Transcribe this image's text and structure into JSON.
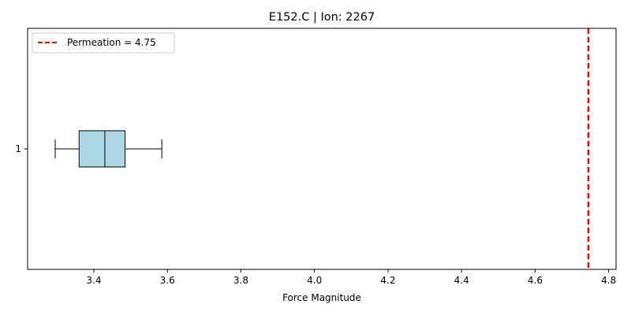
{
  "chart_data": {
    "type": "boxplot",
    "orientation": "horizontal",
    "title": "E152.C | Ion: 2267",
    "xlabel": "Force Magnitude",
    "ylabel": "",
    "xlim": [
      3.22,
      4.82
    ],
    "x_ticks": [
      3.4,
      3.6,
      3.8,
      4.0,
      4.2,
      4.4,
      4.6,
      4.8
    ],
    "x_tick_labels": [
      "3.4",
      "3.6",
      "3.8",
      "4.0",
      "4.2",
      "4.4",
      "4.6",
      "4.8"
    ],
    "y_tick_labels": [
      "1"
    ],
    "boxes": [
      {
        "position": 1,
        "whisker_low": 3.295,
        "q1": 3.36,
        "median": 3.43,
        "q3": 3.485,
        "whisker_high": 3.585,
        "fill_color": "#add8e6",
        "edge_color": "#000000"
      }
    ],
    "reference_line": {
      "label": "Permeation = 4.75",
      "value": 4.745,
      "color": "#ff0000",
      "style": "dashed"
    },
    "legend": {
      "position": "top-left",
      "entries": [
        "Permeation = 4.75"
      ]
    },
    "grid": false
  }
}
